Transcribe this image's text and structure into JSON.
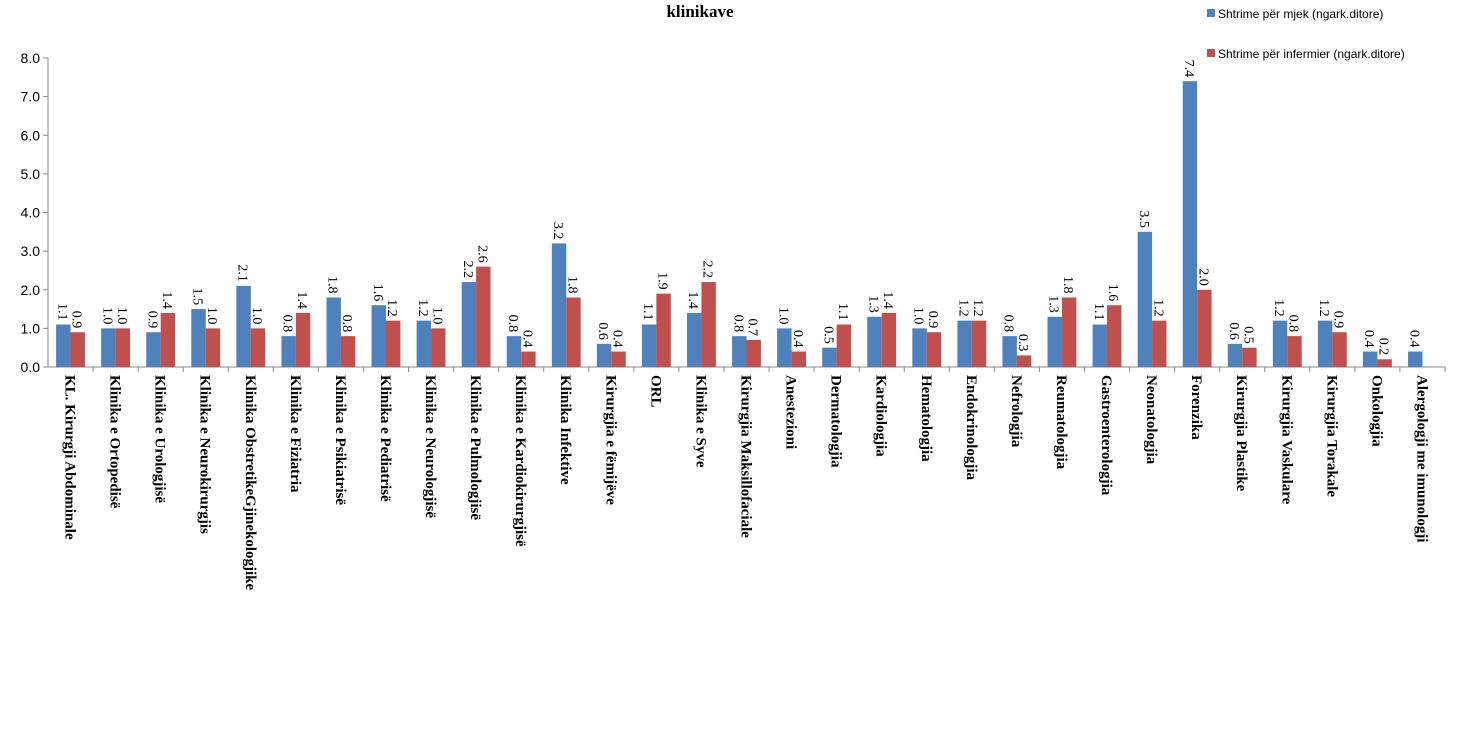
{
  "chart_data": {
    "type": "bar",
    "title": "klinikave",
    "categories": [
      "KL. Kirurgji Abdominale",
      "Klinika e Ortopedisë",
      "Klinika e Urologjisë",
      "Klinika e Neurokirurgjis",
      "Klinika ObstretikeGjinekologjike",
      "Klinika e Fiziatria",
      "Klinika e Psikiatrisë",
      "Klinika e Pediatrisë",
      "Klinika e Neurologjisë",
      "Klinika e Pulmologjisë",
      "Klinika e Kardiokirurgjisë",
      "Klinika Infektive",
      "Kirurgjia e fëmijëve",
      "ORL",
      "Klinika e Syve",
      "Kirurgjia Maksillofaciale",
      "Anestezioni",
      "Dermatologjia",
      "Kardiologjia",
      "Hematologjia",
      "Endokrinologjia",
      "Nefrologjia",
      "Reumatologjia",
      "Gastroenterologjia",
      "Neonatologjia",
      "Forenzika",
      "Kirurgjia Plastike",
      "Kirurgjia Vaskulare",
      "Kirurgjia Torakale",
      "Onkologjia",
      "Alergologji me imunologji"
    ],
    "series": [
      {
        "name": "Shtrime për mjek (ngark.ditore)",
        "color": "#4f81bd",
        "values": [
          1.1,
          1.0,
          0.9,
          1.5,
          2.1,
          0.8,
          1.8,
          1.6,
          1.2,
          2.2,
          0.8,
          3.2,
          0.6,
          1.1,
          1.4,
          0.8,
          1.0,
          0.5,
          1.3,
          1.0,
          1.2,
          0.8,
          1.3,
          1.1,
          3.5,
          7.4,
          0.6,
          1.2,
          1.2,
          0.4,
          0.4
        ],
        "value_labels": [
          null,
          "1.0",
          null,
          null,
          null,
          null,
          null,
          null,
          null,
          null,
          null,
          null,
          null,
          null,
          null,
          null,
          "1.0",
          null,
          null,
          "1.0",
          null,
          null,
          null,
          null,
          null,
          null,
          null,
          null,
          null,
          null,
          null
        ]
      },
      {
        "name": "Shtrime për infermier (ngark.ditore)",
        "color": "#c0504d",
        "values": [
          0.9,
          1.0,
          1.4,
          1.0,
          1.0,
          1.4,
          0.8,
          1.2,
          1.0,
          2.6,
          0.4,
          1.8,
          0.4,
          1.9,
          2.2,
          0.7,
          0.4,
          1.1,
          1.4,
          0.9,
          1.2,
          0.3,
          1.8,
          1.6,
          1.2,
          2.0,
          0.5,
          0.8,
          0.9,
          0.2,
          null
        ],
        "value_labels": [
          null,
          "1.0",
          null,
          "1.0",
          "1.0",
          null,
          null,
          null,
          "1.0",
          null,
          null,
          null,
          null,
          null,
          null,
          null,
          null,
          null,
          null,
          null,
          null,
          null,
          null,
          null,
          null,
          "2.0",
          null,
          null,
          null,
          null,
          null
        ]
      }
    ],
    "ylim": [
      0,
      8
    ],
    "yticks": [
      {
        "value": 0,
        "label": "0.0"
      },
      {
        "value": 1,
        "label": "1.0"
      },
      {
        "value": 2,
        "label": "2.0"
      },
      {
        "value": 3,
        "label": "3.0"
      },
      {
        "value": 4,
        "label": "4.0"
      },
      {
        "value": 5,
        "label": "5.0"
      },
      {
        "value": 6,
        "label": "6.0"
      },
      {
        "value": 7,
        "label": "7.0"
      },
      {
        "value": 8,
        "label": "8.0"
      }
    ],
    "legend": "top-right"
  }
}
